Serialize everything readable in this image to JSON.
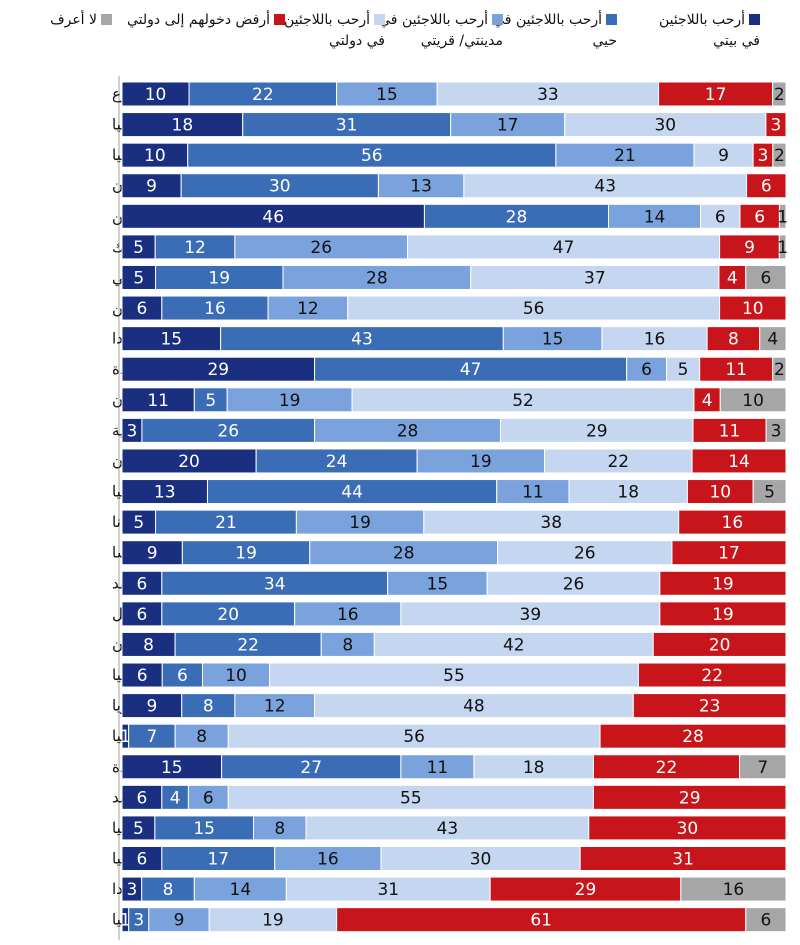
{
  "chart_data": {
    "type": "bar",
    "orientation": "horizontal",
    "stacked": true,
    "unit": "%",
    "title": "",
    "xlabel": "",
    "ylabel": "",
    "xlim": [
      0,
      100
    ],
    "legend_position": "top",
    "categories": [
      "المجموع",
      "اسبانيا",
      "ألمانيا",
      "الأردن",
      "الصين",
      "المكسيك",
      "تشيلي",
      "الأرجنتين",
      "كندا",
      "المملكة المتحدة",
      "باكستان",
      "كوريا الجنوبية",
      "اليونان",
      "استراليا",
      "غانا",
      "فرنسا",
      "الهند",
      "البرازيل",
      "لبنان",
      "كينيا",
      "نيجيريا",
      "أندونيسيا",
      "الولايات المتحدة",
      "تايلاند",
      "تركيا",
      "جنوب أفريقيا",
      "بولندا",
      "روسيا"
    ],
    "series": [
      {
        "name": "أرحب باللاجئين في بيتي",
        "color": "#1a2f80",
        "label_color": "#ffffff",
        "values": [
          10,
          18,
          10,
          9,
          46,
          5,
          5,
          6,
          15,
          29,
          11,
          3,
          20,
          13,
          5,
          9,
          6,
          6,
          8,
          6,
          9,
          1,
          15,
          6,
          5,
          6,
          3,
          1
        ]
      },
      {
        "name": "أرحب باللاجئين في حيي",
        "color": "#3a6db5",
        "label_color": "#ffffff",
        "values": [
          22,
          31,
          56,
          30,
          28,
          12,
          19,
          16,
          43,
          47,
          5,
          26,
          24,
          44,
          21,
          19,
          34,
          20,
          22,
          6,
          8,
          7,
          27,
          4,
          15,
          17,
          8,
          3
        ]
      },
      {
        "name": "أرحب باللاجئين في مدينتي/ قريتي",
        "color": "#7aa3de",
        "label_color": "#111111",
        "values": [
          15,
          17,
          21,
          13,
          14,
          26,
          28,
          12,
          15,
          6,
          19,
          28,
          19,
          11,
          19,
          28,
          15,
          16,
          8,
          10,
          12,
          8,
          11,
          6,
          8,
          16,
          14,
          9
        ]
      },
      {
        "name": "أرحب باللاجئين في دولتي",
        "color": "#c4d6f0",
        "label_color": "#111111",
        "values": [
          33,
          30,
          9,
          43,
          6,
          47,
          37,
          56,
          16,
          5,
          52,
          29,
          22,
          18,
          38,
          26,
          26,
          39,
          42,
          55,
          48,
          56,
          18,
          55,
          43,
          30,
          31,
          19
        ]
      },
      {
        "name": "أرفض دخولهم إلى دولتي",
        "color": "#c8151b",
        "label_color": "#ffffff",
        "values": [
          17,
          3,
          3,
          6,
          6,
          9,
          4,
          10,
          8,
          11,
          4,
          11,
          14,
          10,
          16,
          17,
          19,
          19,
          20,
          22,
          23,
          28,
          22,
          29,
          30,
          31,
          29,
          61
        ]
      },
      {
        "name": "لا أعرف",
        "color": "#a6a6a6",
        "label_color": "#111111",
        "values": [
          2,
          null,
          2,
          null,
          1,
          1,
          6,
          null,
          4,
          2,
          10,
          3,
          null,
          5,
          null,
          null,
          null,
          null,
          null,
          null,
          null,
          null,
          7,
          null,
          null,
          null,
          16,
          6
        ]
      }
    ]
  },
  "legend": [
    {
      "label": "أرحب باللاجئين\nفي بيتي",
      "color": "#1a2f80"
    },
    {
      "label": "أرحب باللاجئين في\nحيي",
      "color": "#3a6db5"
    },
    {
      "label": "أرحب باللاجئين في\nمدينتي/ قريتي",
      "color": "#7aa3de"
    },
    {
      "label": "أرحب باللاجئين\nفي دولتي",
      "color": "#c4d6f0"
    },
    {
      "label": "أرفض دخولهم إلى دولتي",
      "color": "#c8151b"
    },
    {
      "label": "لا أعرف",
      "color": "#a6a6a6"
    }
  ]
}
